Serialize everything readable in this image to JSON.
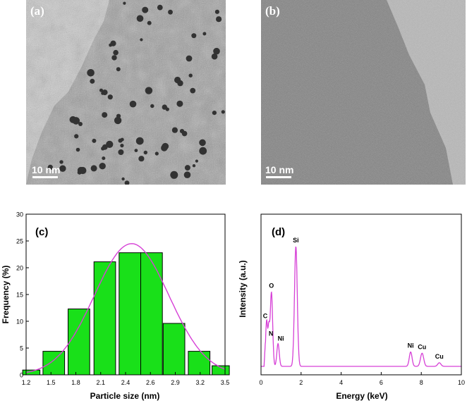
{
  "panels": {
    "a": {
      "label": "(a)",
      "scale": "10 nm"
    },
    "b": {
      "label": "(b)",
      "scale": "10 nm"
    }
  },
  "colors": {
    "bar_fill": "#19e019",
    "fit_line": "#d640d6",
    "eds_line": "#d640d6"
  },
  "chart_data": [
    {
      "type": "bar",
      "panel_label": "(c)",
      "xlabel": "Particle size (nm)",
      "ylabel": "Frequency (%)",
      "x_ticks": [
        "1.2",
        "1.5",
        "1.8",
        "2.1",
        "2.4",
        "2.6",
        "2.9",
        "3.2",
        "3.5"
      ],
      "y_ticks": [
        "0",
        "5",
        "10",
        "15",
        "20",
        "25",
        "30"
      ],
      "ylim": [
        0,
        30
      ],
      "bars": [
        {
          "center": 1.26,
          "width": 0.2,
          "value": 0.9
        },
        {
          "center": 1.52,
          "width": 0.25,
          "value": 4.4
        },
        {
          "center": 1.81,
          "width": 0.25,
          "value": 12.3
        },
        {
          "center": 2.11,
          "width": 0.25,
          "value": 21.1
        },
        {
          "center": 2.4,
          "width": 0.25,
          "value": 22.8
        },
        {
          "center": 2.65,
          "width": 0.25,
          "value": 22.8
        },
        {
          "center": 2.91,
          "width": 0.25,
          "value": 9.6
        },
        {
          "center": 3.2,
          "width": 0.25,
          "value": 4.4
        },
        {
          "center": 3.45,
          "width": 0.2,
          "value": 1.7
        }
      ],
      "fit": {
        "type": "gaussian",
        "center": 2.42,
        "sigma": 0.43,
        "peak": 24.5
      }
    },
    {
      "type": "line",
      "panel_label": "(d)",
      "xlabel": "Energy (keV)",
      "ylabel": "Intensity (a.u.)",
      "xlim": [
        0,
        10
      ],
      "x_ticks": [
        0,
        2,
        4,
        6,
        8,
        10
      ],
      "peaks": [
        {
          "label": "C",
          "energy": 0.28,
          "height": 0.38,
          "width": 0.05
        },
        {
          "label": "N",
          "energy": 0.39,
          "height": 0.28,
          "width": 0.04
        },
        {
          "label": "O",
          "energy": 0.52,
          "height": 0.62,
          "width": 0.06
        },
        {
          "label": "Ni",
          "energy": 0.85,
          "height": 0.19,
          "width": 0.06
        },
        {
          "label": "Si",
          "energy": 1.74,
          "height": 1.0,
          "width": 0.07
        },
        {
          "label": "Ni",
          "energy": 7.47,
          "height": 0.12,
          "width": 0.07
        },
        {
          "label": "Cu",
          "energy": 8.04,
          "height": 0.11,
          "width": 0.08
        },
        {
          "label": "Cu",
          "energy": 8.9,
          "height": 0.03,
          "width": 0.08
        }
      ]
    }
  ]
}
